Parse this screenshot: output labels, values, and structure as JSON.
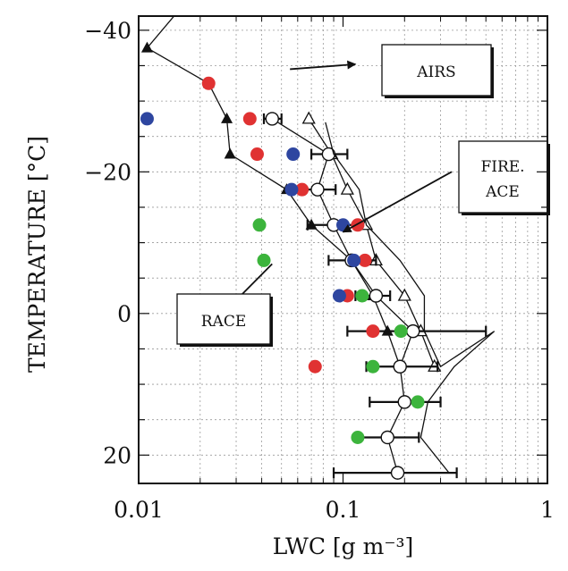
{
  "chart_data": {
    "type": "scatter",
    "xlabel": "LWC [g m⁻³]",
    "ylabel": "TEMPERATURE [°C]",
    "x_scale": "log",
    "xlim": [
      0.01,
      1
    ],
    "ylim": [
      24,
      -42
    ],
    "x_ticks": [
      {
        "value": 0.01,
        "label": "0.01"
      },
      {
        "value": 0.1,
        "label": "0.1"
      },
      {
        "value": 1,
        "label": "1"
      }
    ],
    "y_ticks": [
      {
        "value": -40,
        "label": "−40"
      },
      {
        "value": -20,
        "label": "−20"
      },
      {
        "value": 0,
        "label": "0"
      },
      {
        "value": 20,
        "label": "20"
      }
    ],
    "grid": true,
    "series": [
      {
        "marker": "filled-triangle",
        "color": "#111111",
        "line": true,
        "points": [
          [
            0.0195,
            -46
          ],
          [
            0.011,
            -37.5
          ],
          [
            0.022,
            -32.5
          ],
          [
            0.027,
            -27.5
          ],
          [
            0.028,
            -22.5
          ],
          [
            0.053,
            -17.5
          ],
          [
            0.07,
            -12.5
          ],
          [
            0.11,
            -7.5
          ],
          [
            0.14,
            -2.5
          ],
          [
            0.165,
            2.5
          ],
          [
            0.19,
            7.5
          ]
        ]
      },
      {
        "marker": "open-triangle",
        "color": "#111111",
        "line": true,
        "points": [
          [
            0.068,
            -27.5
          ],
          [
            0.088,
            -22.5
          ],
          [
            0.105,
            -17.5
          ],
          [
            0.13,
            -12.5
          ],
          [
            0.145,
            -7.5
          ],
          [
            0.2,
            -2.5
          ],
          [
            0.24,
            2.5
          ],
          [
            0.28,
            7.5
          ]
        ]
      },
      {
        "marker": "open-circle",
        "color": "#111111",
        "line": true,
        "error_bars": true,
        "points": [
          {
            "x": 0.045,
            "y": -27.5,
            "xmin": 0.041,
            "xmax": 0.05
          },
          {
            "x": 0.085,
            "y": -22.5,
            "xmin": 0.07,
            "xmax": 0.105
          },
          {
            "x": 0.075,
            "y": -17.5,
            "xmin": 0.065,
            "xmax": 0.092
          },
          {
            "x": 0.09,
            "y": -12.5,
            "xmin": 0.067,
            "xmax": 0.115
          },
          {
            "x": 0.11,
            "y": -7.5,
            "xmin": 0.085,
            "xmax": 0.145
          },
          {
            "x": 0.145,
            "y": -2.5,
            "xmin": 0.115,
            "xmax": 0.17
          },
          {
            "x": 0.22,
            "y": 2.5,
            "xmin": 0.105,
            "xmax": 0.5
          },
          {
            "x": 0.19,
            "y": 7.5,
            "xmin": 0.13,
            "xmax": 0.29
          },
          {
            "x": 0.2,
            "y": 12.5,
            "xmin": 0.135,
            "xmax": 0.3
          },
          {
            "x": 0.165,
            "y": 17.5,
            "xmin": 0.118,
            "xmax": 0.235
          },
          {
            "x": 0.185,
            "y": 22.5,
            "xmin": 0.09,
            "xmax": 0.36
          }
        ]
      },
      {
        "marker": "line-only",
        "color": "#111111",
        "line": true,
        "points": [
          [
            0.082,
            -27
          ],
          [
            0.09,
            -22.5
          ],
          [
            0.12,
            -17.5
          ],
          [
            0.13,
            -12.5
          ],
          [
            0.19,
            -7.5
          ],
          [
            0.25,
            -2.5
          ],
          [
            0.25,
            2.5
          ],
          [
            0.3,
            7.5
          ],
          [
            0.55,
            2.5
          ],
          [
            0.35,
            7.5
          ],
          [
            0.26,
            12.5
          ],
          [
            0.24,
            17.5
          ],
          [
            0.33,
            22.5
          ]
        ]
      },
      {
        "marker": "filled-circle",
        "color": "#e03232",
        "line": false,
        "points": [
          [
            0.022,
            -32.5
          ],
          [
            0.035,
            -27.5
          ],
          [
            0.038,
            -22.5
          ],
          [
            0.063,
            -17.5
          ],
          [
            0.118,
            -12.5
          ],
          [
            0.128,
            -7.5
          ],
          [
            0.105,
            -2.5
          ],
          [
            0.14,
            2.5
          ],
          [
            0.073,
            7.5
          ]
        ]
      },
      {
        "marker": "filled-circle",
        "color": "#2e46a0",
        "line": false,
        "points": [
          [
            0.011,
            -27.5
          ],
          [
            0.057,
            -22.5
          ],
          [
            0.056,
            -17.5
          ],
          [
            0.1,
            -12.5
          ],
          [
            0.113,
            -7.5
          ],
          [
            0.096,
            -2.5
          ]
        ]
      },
      {
        "marker": "filled-circle",
        "color": "#3cb43c",
        "line": false,
        "points": [
          [
            0.039,
            -12.5
          ],
          [
            0.041,
            -7.5
          ],
          [
            0.124,
            -2.5
          ],
          [
            0.192,
            2.5
          ],
          [
            0.14,
            7.5
          ],
          [
            0.232,
            12.5
          ],
          [
            0.118,
            17.5
          ]
        ]
      }
    ],
    "annotations": [
      {
        "label": "AIRS",
        "lines": [
          "AIRS"
        ],
        "arrow_from": [
          0.055,
          -34.5
        ],
        "arrow_to": [
          0.115,
          -35.2
        ]
      },
      {
        "label": "FIRE.\nACE",
        "lines": [
          "FIRE.",
          "ACE"
        ],
        "arrow_from": [
          0.34,
          -20
        ],
        "arrow_to": [
          0.1,
          -11.5
        ]
      },
      {
        "label": "RACE",
        "lines": [
          "RACE"
        ],
        "arrow_from": [
          0.045,
          -7
        ],
        "arrow_to": [
          0.028,
          -1
        ]
      }
    ]
  }
}
